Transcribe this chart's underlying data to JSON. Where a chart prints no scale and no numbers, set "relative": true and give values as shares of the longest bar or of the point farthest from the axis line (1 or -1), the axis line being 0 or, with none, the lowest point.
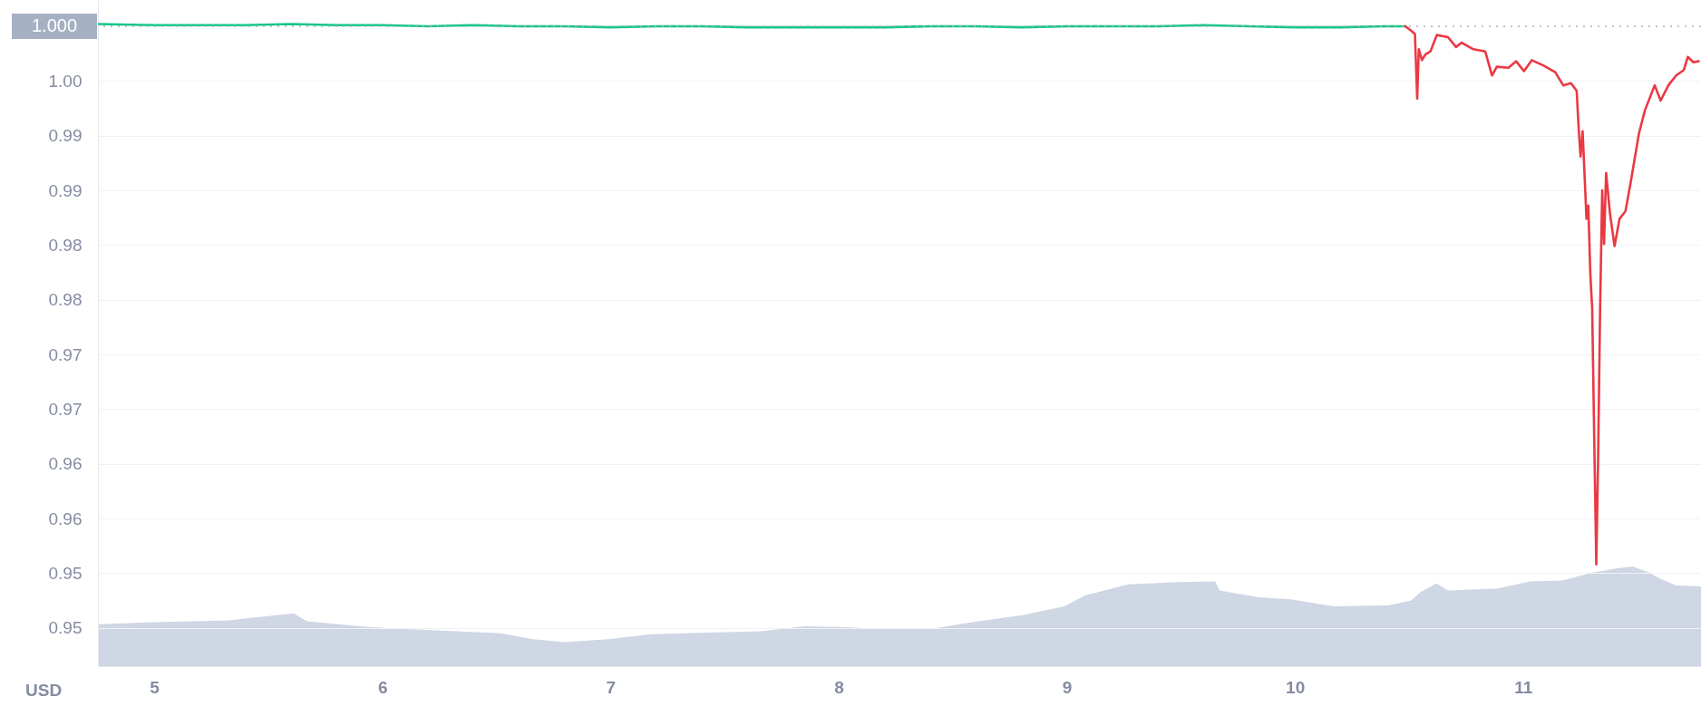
{
  "chart_data": [
    {
      "type": "line",
      "xlim": [
        4.753,
        11.78
      ],
      "ylim": [
        0.9415,
        1.0024
      ],
      "yticks": [
        {
          "value": 0.995,
          "label": "1.00"
        },
        {
          "value": 0.99,
          "label": "0.99"
        },
        {
          "value": 0.985,
          "label": "0.99"
        },
        {
          "value": 0.98,
          "label": "0.98"
        },
        {
          "value": 0.975,
          "label": "0.98"
        },
        {
          "value": 0.97,
          "label": "0.97"
        },
        {
          "value": 0.965,
          "label": "0.97"
        },
        {
          "value": 0.96,
          "label": "0.96"
        },
        {
          "value": 0.955,
          "label": "0.96"
        },
        {
          "value": 0.95,
          "label": "0.95"
        },
        {
          "value": 0.945,
          "label": "0.95"
        }
      ],
      "grid": "y",
      "tick_labels": "y",
      "ref_lines": [
        {
          "axis": "y",
          "value": 1.0,
          "label": "1.000",
          "color": "#a6b0c3",
          "line_style": "dotted"
        }
      ],
      "series": [
        {
          "color": "#16c784",
          "x": [
            4.753,
            5.0,
            5.2,
            5.4,
            5.6,
            5.8,
            6.0,
            6.2,
            6.4,
            6.6,
            6.8,
            7.0,
            7.2,
            7.4,
            7.6,
            7.8,
            8.0,
            8.2,
            8.4,
            8.6,
            8.8,
            9.0,
            9.2,
            9.4,
            9.6,
            9.8,
            10.0,
            10.2,
            10.4,
            10.484
          ],
          "values": [
            1.0002,
            1.0001,
            1.0001,
            1.0001,
            1.0002,
            1.0001,
            1.0001,
            1.0,
            1.0001,
            1.0,
            1.0,
            0.9999,
            1.0,
            1.0,
            0.9999,
            0.9999,
            0.9999,
            0.9999,
            1.0,
            1.0,
            0.9999,
            1.0,
            1.0,
            1.0,
            1.0001,
            1.0,
            0.9999,
            0.9999,
            1.0,
            1.0
          ]
        },
        {
          "color": "#ea3943",
          "x": [
            10.484,
            10.509,
            10.526,
            10.536,
            10.543,
            10.557,
            10.571,
            10.594,
            10.622,
            10.671,
            10.706,
            10.731,
            10.782,
            10.834,
            10.864,
            10.885,
            10.936,
            10.97,
            11.004,
            11.038,
            11.09,
            11.141,
            11.176,
            11.21,
            11.235,
            11.244,
            11.252,
            11.261,
            11.269,
            11.278,
            11.286,
            11.295,
            11.303,
            11.312,
            11.321,
            11.329,
            11.338,
            11.347,
            11.355,
            11.364,
            11.381,
            11.401,
            11.423,
            11.449,
            11.474,
            11.508,
            11.534,
            11.577,
            11.603,
            11.637,
            11.671,
            11.705,
            11.722,
            11.747,
            11.77
          ],
          "values": [
            1.0,
            0.9996,
            0.9993,
            0.9934,
            0.9979,
            0.9969,
            0.9974,
            0.9977,
            0.9992,
            0.999,
            0.9981,
            0.9985,
            0.9979,
            0.9977,
            0.9955,
            0.9963,
            0.9962,
            0.9968,
            0.9959,
            0.9969,
            0.9964,
            0.9958,
            0.9946,
            0.9948,
            0.9941,
            0.9906,
            0.9881,
            0.9904,
            0.9867,
            0.9824,
            0.9836,
            0.9773,
            0.9742,
            0.9623,
            0.9508,
            0.9605,
            0.9745,
            0.985,
            0.9801,
            0.9866,
            0.9829,
            0.9799,
            0.9824,
            0.9831,
            0.986,
            0.9902,
            0.9923,
            0.9946,
            0.9932,
            0.9946,
            0.9955,
            0.996,
            0.9972,
            0.9967,
            0.9968
          ]
        }
      ]
    },
    {
      "type": "area",
      "relative": true,
      "xlim": [
        4.753,
        11.78
      ],
      "xticks": [
        5,
        6,
        7,
        8,
        9,
        10,
        11
      ],
      "tick_labels": "x",
      "color": "#cfd6e4",
      "annotations": [
        "USD"
      ],
      "x": [
        4.753,
        5.0,
        5.33,
        5.61,
        5.67,
        5.9,
        6.04,
        6.33,
        6.52,
        6.66,
        6.8,
        6.99,
        7.18,
        7.66,
        7.85,
        8.04,
        8.13,
        8.42,
        8.61,
        8.8,
        8.99,
        9.08,
        9.27,
        9.46,
        9.65,
        9.67,
        9.84,
        9.98,
        10.17,
        10.41,
        10.51,
        10.55,
        10.62,
        10.67,
        10.89,
        11.03,
        11.17,
        11.31,
        11.41,
        11.48,
        11.55,
        11.6,
        11.67,
        11.78
      ],
      "values": [
        0.42,
        0.44,
        0.46,
        0.53,
        0.45,
        0.4,
        0.38,
        0.35,
        0.33,
        0.27,
        0.24,
        0.27,
        0.32,
        0.35,
        0.4,
        0.39,
        0.38,
        0.38,
        0.45,
        0.51,
        0.6,
        0.71,
        0.82,
        0.84,
        0.85,
        0.76,
        0.69,
        0.67,
        0.6,
        0.61,
        0.66,
        0.74,
        0.83,
        0.76,
        0.78,
        0.85,
        0.86,
        0.94,
        0.98,
        1,
        0.94,
        0.88,
        0.81,
        0.8
      ]
    }
  ]
}
